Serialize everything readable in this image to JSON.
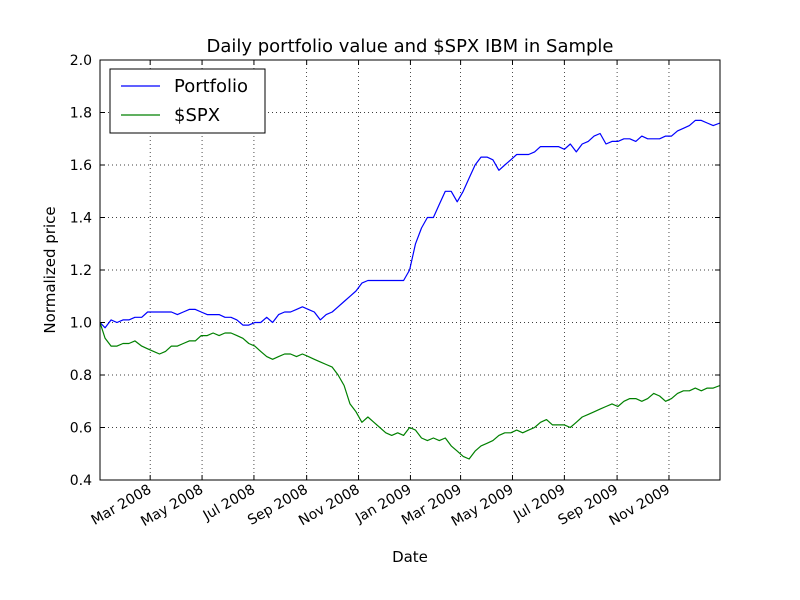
{
  "chart_data": {
    "type": "line",
    "title": "Daily portfolio value and $SPX IBM in Sample",
    "xlabel": "Date",
    "ylabel": "Normalized price",
    "ylim": [
      0.4,
      2.0
    ],
    "xlim": [
      "2008-01-02",
      "2009-12-31"
    ],
    "yticks": [
      "0.4",
      "0.6",
      "0.8",
      "1.0",
      "1.2",
      "1.4",
      "1.6",
      "1.8",
      "2.0"
    ],
    "xticks": [
      {
        "date": "2008-03-01",
        "label": "Mar 2008"
      },
      {
        "date": "2008-05-01",
        "label": "May 2008"
      },
      {
        "date": "2008-07-01",
        "label": "Jul 2008"
      },
      {
        "date": "2008-09-01",
        "label": "Sep 2008"
      },
      {
        "date": "2008-11-01",
        "label": "Nov 2008"
      },
      {
        "date": "2009-01-01",
        "label": "Jan 2009"
      },
      {
        "date": "2009-03-01",
        "label": "Mar 2009"
      },
      {
        "date": "2009-05-01",
        "label": "May 2009"
      },
      {
        "date": "2009-07-01",
        "label": "Jul 2009"
      },
      {
        "date": "2009-09-01",
        "label": "Sep 2009"
      },
      {
        "date": "2009-11-01",
        "label": "Nov 2009"
      }
    ],
    "grid": true,
    "legend_position": "top-left",
    "series": [
      {
        "name": "Portfolio",
        "color": "#0000ff",
        "points": [
          [
            "2008-01-02",
            1.0
          ],
          [
            "2008-01-08",
            0.98
          ],
          [
            "2008-01-15",
            1.01
          ],
          [
            "2008-01-22",
            1.0
          ],
          [
            "2008-01-29",
            1.01
          ],
          [
            "2008-02-05",
            1.01
          ],
          [
            "2008-02-12",
            1.02
          ],
          [
            "2008-02-20",
            1.02
          ],
          [
            "2008-02-27",
            1.04
          ],
          [
            "2008-03-05",
            1.04
          ],
          [
            "2008-03-12",
            1.04
          ],
          [
            "2008-03-19",
            1.04
          ],
          [
            "2008-03-26",
            1.04
          ],
          [
            "2008-04-02",
            1.03
          ],
          [
            "2008-04-09",
            1.04
          ],
          [
            "2008-04-16",
            1.05
          ],
          [
            "2008-04-23",
            1.05
          ],
          [
            "2008-04-30",
            1.04
          ],
          [
            "2008-05-07",
            1.03
          ],
          [
            "2008-05-14",
            1.03
          ],
          [
            "2008-05-21",
            1.03
          ],
          [
            "2008-05-28",
            1.02
          ],
          [
            "2008-06-04",
            1.02
          ],
          [
            "2008-06-11",
            1.01
          ],
          [
            "2008-06-18",
            0.99
          ],
          [
            "2008-06-25",
            0.99
          ],
          [
            "2008-07-02",
            1.0
          ],
          [
            "2008-07-09",
            1.0
          ],
          [
            "2008-07-16",
            1.02
          ],
          [
            "2008-07-23",
            1.0
          ],
          [
            "2008-07-30",
            1.03
          ],
          [
            "2008-08-06",
            1.04
          ],
          [
            "2008-08-13",
            1.04
          ],
          [
            "2008-08-20",
            1.05
          ],
          [
            "2008-08-27",
            1.06
          ],
          [
            "2008-09-03",
            1.05
          ],
          [
            "2008-09-10",
            1.04
          ],
          [
            "2008-09-17",
            1.01
          ],
          [
            "2008-09-24",
            1.03
          ],
          [
            "2008-10-01",
            1.04
          ],
          [
            "2008-10-08",
            1.06
          ],
          [
            "2008-10-15",
            1.08
          ],
          [
            "2008-10-22",
            1.1
          ],
          [
            "2008-10-29",
            1.12
          ],
          [
            "2008-11-05",
            1.15
          ],
          [
            "2008-11-12",
            1.16
          ],
          [
            "2008-11-19",
            1.16
          ],
          [
            "2008-11-26",
            1.16
          ],
          [
            "2008-12-03",
            1.16
          ],
          [
            "2008-12-10",
            1.16
          ],
          [
            "2008-12-17",
            1.16
          ],
          [
            "2008-12-24",
            1.16
          ],
          [
            "2008-12-31",
            1.2
          ],
          [
            "2009-01-07",
            1.3
          ],
          [
            "2009-01-14",
            1.36
          ],
          [
            "2009-01-21",
            1.4
          ],
          [
            "2009-01-28",
            1.4
          ],
          [
            "2009-02-04",
            1.45
          ],
          [
            "2009-02-11",
            1.5
          ],
          [
            "2009-02-18",
            1.5
          ],
          [
            "2009-02-25",
            1.46
          ],
          [
            "2009-03-04",
            1.5
          ],
          [
            "2009-03-11",
            1.55
          ],
          [
            "2009-03-18",
            1.6
          ],
          [
            "2009-03-25",
            1.63
          ],
          [
            "2009-04-01",
            1.63
          ],
          [
            "2009-04-08",
            1.62
          ],
          [
            "2009-04-15",
            1.58
          ],
          [
            "2009-04-22",
            1.6
          ],
          [
            "2009-04-29",
            1.62
          ],
          [
            "2009-05-06",
            1.64
          ],
          [
            "2009-05-13",
            1.64
          ],
          [
            "2009-05-20",
            1.64
          ],
          [
            "2009-05-27",
            1.65
          ],
          [
            "2009-06-03",
            1.67
          ],
          [
            "2009-06-10",
            1.67
          ],
          [
            "2009-06-17",
            1.67
          ],
          [
            "2009-06-24",
            1.67
          ],
          [
            "2009-07-01",
            1.66
          ],
          [
            "2009-07-08",
            1.68
          ],
          [
            "2009-07-15",
            1.65
          ],
          [
            "2009-07-22",
            1.68
          ],
          [
            "2009-07-29",
            1.69
          ],
          [
            "2009-08-05",
            1.71
          ],
          [
            "2009-08-12",
            1.72
          ],
          [
            "2009-08-19",
            1.68
          ],
          [
            "2009-08-26",
            1.69
          ],
          [
            "2009-09-02",
            1.69
          ],
          [
            "2009-09-09",
            1.7
          ],
          [
            "2009-09-16",
            1.7
          ],
          [
            "2009-09-23",
            1.69
          ],
          [
            "2009-09-30",
            1.71
          ],
          [
            "2009-10-07",
            1.7
          ],
          [
            "2009-10-14",
            1.7
          ],
          [
            "2009-10-21",
            1.7
          ],
          [
            "2009-10-28",
            1.71
          ],
          [
            "2009-11-04",
            1.71
          ],
          [
            "2009-11-11",
            1.73
          ],
          [
            "2009-11-18",
            1.74
          ],
          [
            "2009-11-25",
            1.75
          ],
          [
            "2009-12-02",
            1.77
          ],
          [
            "2009-12-09",
            1.77
          ],
          [
            "2009-12-16",
            1.76
          ],
          [
            "2009-12-23",
            1.75
          ],
          [
            "2009-12-31",
            1.76
          ]
        ]
      },
      {
        "name": "$SPX",
        "color": "#008000",
        "points": [
          [
            "2008-01-02",
            1.0
          ],
          [
            "2008-01-08",
            0.94
          ],
          [
            "2008-01-15",
            0.91
          ],
          [
            "2008-01-22",
            0.91
          ],
          [
            "2008-01-29",
            0.92
          ],
          [
            "2008-02-05",
            0.92
          ],
          [
            "2008-02-12",
            0.93
          ],
          [
            "2008-02-20",
            0.91
          ],
          [
            "2008-02-27",
            0.9
          ],
          [
            "2008-03-05",
            0.89
          ],
          [
            "2008-03-12",
            0.88
          ],
          [
            "2008-03-19",
            0.89
          ],
          [
            "2008-03-26",
            0.91
          ],
          [
            "2008-04-02",
            0.91
          ],
          [
            "2008-04-09",
            0.92
          ],
          [
            "2008-04-16",
            0.93
          ],
          [
            "2008-04-23",
            0.93
          ],
          [
            "2008-04-30",
            0.95
          ],
          [
            "2008-05-07",
            0.95
          ],
          [
            "2008-05-14",
            0.96
          ],
          [
            "2008-05-21",
            0.95
          ],
          [
            "2008-05-28",
            0.96
          ],
          [
            "2008-06-04",
            0.96
          ],
          [
            "2008-06-11",
            0.95
          ],
          [
            "2008-06-18",
            0.94
          ],
          [
            "2008-06-25",
            0.92
          ],
          [
            "2008-07-02",
            0.91
          ],
          [
            "2008-07-09",
            0.89
          ],
          [
            "2008-07-16",
            0.87
          ],
          [
            "2008-07-23",
            0.86
          ],
          [
            "2008-07-30",
            0.87
          ],
          [
            "2008-08-06",
            0.88
          ],
          [
            "2008-08-13",
            0.88
          ],
          [
            "2008-08-20",
            0.87
          ],
          [
            "2008-08-27",
            0.88
          ],
          [
            "2008-09-03",
            0.87
          ],
          [
            "2008-09-10",
            0.86
          ],
          [
            "2008-09-17",
            0.85
          ],
          [
            "2008-09-24",
            0.84
          ],
          [
            "2008-10-01",
            0.83
          ],
          [
            "2008-10-08",
            0.8
          ],
          [
            "2008-10-15",
            0.76
          ],
          [
            "2008-10-22",
            0.69
          ],
          [
            "2008-10-29",
            0.66
          ],
          [
            "2008-11-05",
            0.62
          ],
          [
            "2008-11-12",
            0.64
          ],
          [
            "2008-11-19",
            0.62
          ],
          [
            "2008-11-26",
            0.6
          ],
          [
            "2008-12-03",
            0.58
          ],
          [
            "2008-12-10",
            0.57
          ],
          [
            "2008-12-17",
            0.58
          ],
          [
            "2008-12-24",
            0.57
          ],
          [
            "2008-12-31",
            0.6
          ],
          [
            "2009-01-07",
            0.59
          ],
          [
            "2009-01-14",
            0.56
          ],
          [
            "2009-01-21",
            0.55
          ],
          [
            "2009-01-28",
            0.56
          ],
          [
            "2009-02-04",
            0.55
          ],
          [
            "2009-02-11",
            0.56
          ],
          [
            "2009-02-18",
            0.53
          ],
          [
            "2009-02-25",
            0.51
          ],
          [
            "2009-03-04",
            0.49
          ],
          [
            "2009-03-11",
            0.48
          ],
          [
            "2009-03-18",
            0.51
          ],
          [
            "2009-03-25",
            0.53
          ],
          [
            "2009-04-01",
            0.54
          ],
          [
            "2009-04-08",
            0.55
          ],
          [
            "2009-04-15",
            0.57
          ],
          [
            "2009-04-22",
            0.58
          ],
          [
            "2009-04-29",
            0.58
          ],
          [
            "2009-05-06",
            0.59
          ],
          [
            "2009-05-13",
            0.58
          ],
          [
            "2009-05-20",
            0.59
          ],
          [
            "2009-05-27",
            0.6
          ],
          [
            "2009-06-03",
            0.62
          ],
          [
            "2009-06-10",
            0.63
          ],
          [
            "2009-06-17",
            0.61
          ],
          [
            "2009-06-24",
            0.61
          ],
          [
            "2009-07-01",
            0.61
          ],
          [
            "2009-07-08",
            0.6
          ],
          [
            "2009-07-15",
            0.62
          ],
          [
            "2009-07-22",
            0.64
          ],
          [
            "2009-07-29",
            0.65
          ],
          [
            "2009-08-05",
            0.66
          ],
          [
            "2009-08-12",
            0.67
          ],
          [
            "2009-08-19",
            0.68
          ],
          [
            "2009-08-26",
            0.69
          ],
          [
            "2009-09-02",
            0.68
          ],
          [
            "2009-09-09",
            0.7
          ],
          [
            "2009-09-16",
            0.71
          ],
          [
            "2009-09-23",
            0.71
          ],
          [
            "2009-09-30",
            0.7
          ],
          [
            "2009-10-07",
            0.71
          ],
          [
            "2009-10-14",
            0.73
          ],
          [
            "2009-10-21",
            0.72
          ],
          [
            "2009-10-28",
            0.7
          ],
          [
            "2009-11-04",
            0.71
          ],
          [
            "2009-11-11",
            0.73
          ],
          [
            "2009-11-18",
            0.74
          ],
          [
            "2009-11-25",
            0.74
          ],
          [
            "2009-12-02",
            0.75
          ],
          [
            "2009-12-09",
            0.74
          ],
          [
            "2009-12-16",
            0.75
          ],
          [
            "2009-12-23",
            0.75
          ],
          [
            "2009-12-31",
            0.76
          ]
        ]
      }
    ]
  }
}
